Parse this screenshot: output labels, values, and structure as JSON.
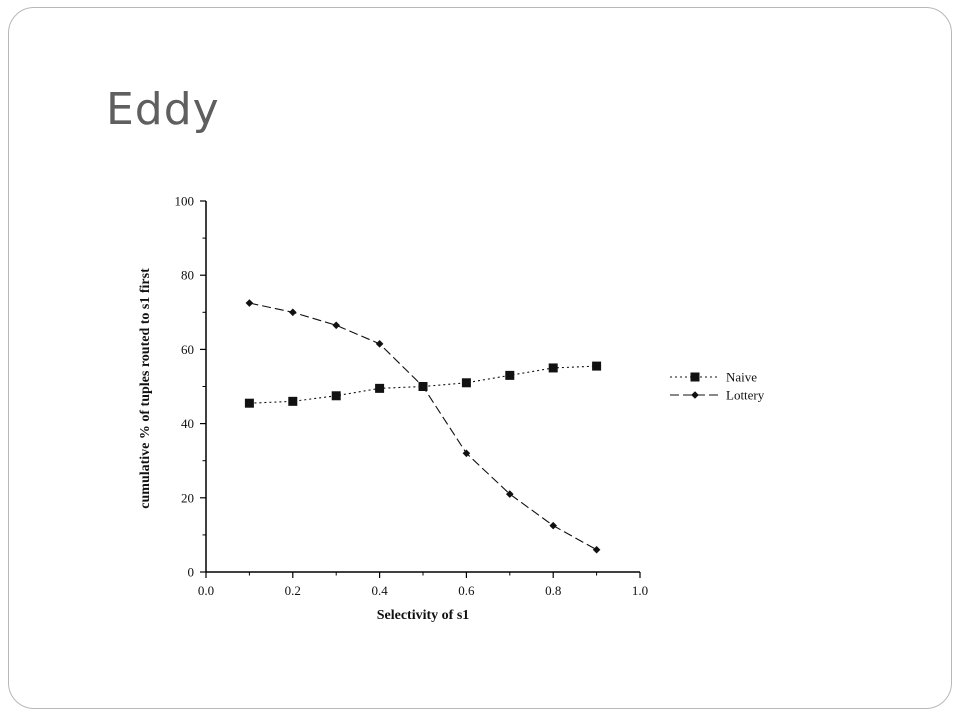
{
  "slide": {
    "title": "Eddy"
  },
  "chart_data": {
    "type": "line",
    "title": "",
    "xlabel": "Selectivity of s1",
    "ylabel": "cumulative % of tuples routed to s1 first",
    "xlim": [
      0.0,
      1.0
    ],
    "ylim": [
      0,
      100
    ],
    "x_ticks": [
      "0.0",
      "0.2",
      "0.4",
      "0.6",
      "0.8",
      "1.0"
    ],
    "y_ticks": [
      "0",
      "20",
      "40",
      "60",
      "80",
      "100"
    ],
    "grid": false,
    "legend_position": "right",
    "x": [
      0.1,
      0.2,
      0.3,
      0.4,
      0.5,
      0.6,
      0.7,
      0.8,
      0.9
    ],
    "series": [
      {
        "name": "Naive",
        "marker": "square",
        "line_style": "dotted",
        "values": [
          45.5,
          46,
          47.5,
          49.5,
          50,
          51,
          53,
          55,
          55.5
        ]
      },
      {
        "name": "Lottery",
        "marker": "diamond",
        "line_style": "dashed",
        "values": [
          72.5,
          70,
          66.5,
          61.5,
          50,
          32,
          21,
          12.5,
          6
        ]
      }
    ]
  }
}
